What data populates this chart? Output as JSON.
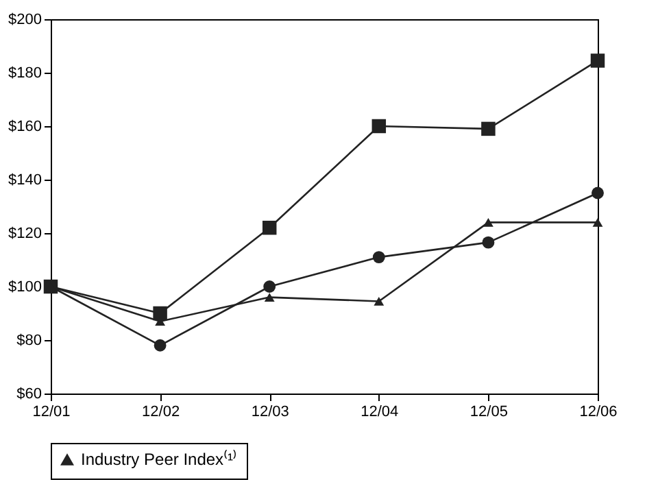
{
  "chart_data": {
    "type": "line",
    "categories": [
      "12/01",
      "12/02",
      "12/03",
      "12/04",
      "12/05",
      "12/06"
    ],
    "series": [
      {
        "color": "#222222",
        "marker": "square",
        "values": [
          100,
          90,
          122,
          160,
          159,
          184.5
        ]
      },
      {
        "color": "#222222",
        "marker": "circle",
        "values": [
          100,
          78,
          100,
          111,
          116.5,
          135
        ]
      },
      {
        "name": "Industry Peer Index⁽¹⁾",
        "color": "#222222",
        "marker": "triangle",
        "values": [
          100,
          87,
          96,
          94.5,
          124,
          124
        ]
      }
    ],
    "ylim": [
      60,
      200
    ],
    "yticks": [
      {
        "value": 60,
        "label": "$60"
      },
      {
        "value": 80,
        "label": "$80"
      },
      {
        "value": 100,
        "label": "$100"
      },
      {
        "value": 120,
        "label": "$120"
      },
      {
        "value": 140,
        "label": "$140"
      },
      {
        "value": 160,
        "label": "$160"
      },
      {
        "value": 180,
        "label": "$180"
      },
      {
        "value": 200,
        "label": "$200"
      }
    ],
    "grid": false,
    "legend": "bottom",
    "line_style": "solid"
  }
}
